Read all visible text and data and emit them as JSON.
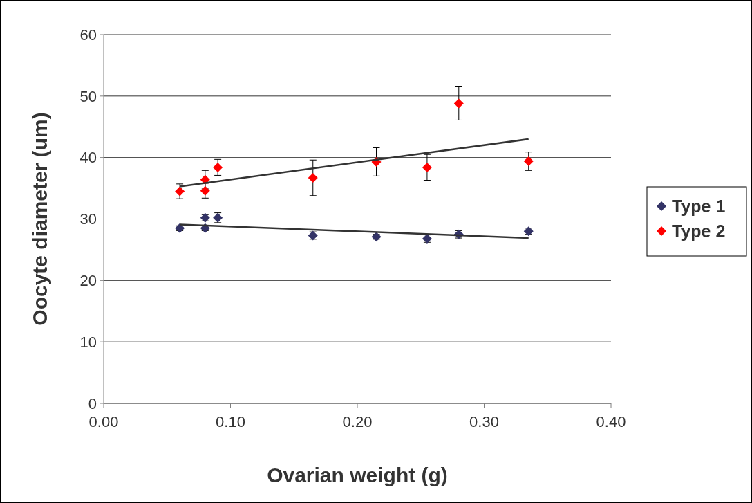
{
  "chart_data": {
    "type": "scatter",
    "xlabel": "Ovarian weight (g)",
    "ylabel": "Oocyte diameter (um)",
    "xlim": [
      0,
      0.4
    ],
    "xticks": [
      {
        "value": 0,
        "label": "0.00"
      },
      {
        "value": 0.1,
        "label": "0.10"
      },
      {
        "value": 0.2,
        "label": "0.20"
      },
      {
        "value": 0.3,
        "label": "0.30"
      },
      {
        "value": 0.4,
        "label": "0.40"
      }
    ],
    "ylim": [
      0,
      60
    ],
    "yticks": [
      0,
      10,
      20,
      30,
      40,
      50,
      60
    ],
    "grid": "y",
    "legend": "right",
    "marker": "diamond",
    "series": [
      {
        "name": "Type 1",
        "color": "#333366",
        "x": [
          0.06,
          0.08,
          0.08,
          0.09,
          0.165,
          0.215,
          0.255,
          0.28,
          0.335
        ],
        "values": [
          28.5,
          30.2,
          28.5,
          30.2,
          27.3,
          27.1,
          26.8,
          27.5,
          28.0
        ],
        "errors": [
          0.4,
          0.5,
          0.4,
          0.8,
          0.6,
          0.4,
          0.6,
          0.6,
          0.5
        ]
      },
      {
        "name": "Type 2",
        "color": "#ff0000",
        "x": [
          0.06,
          0.08,
          0.08,
          0.09,
          0.165,
          0.215,
          0.255,
          0.28,
          0.335
        ],
        "values": [
          34.5,
          36.4,
          34.6,
          38.4,
          36.7,
          39.3,
          38.4,
          48.8,
          39.4
        ],
        "errors": [
          1.2,
          1.5,
          1.2,
          1.3,
          2.9,
          2.3,
          2.1,
          2.7,
          1.5
        ]
      },
      {
        "type": "line",
        "color": "#333333",
        "x": [
          0.06,
          0.335
        ],
        "values": [
          29.1,
          26.9
        ],
        "marker": "none"
      },
      {
        "type": "line",
        "color": "#333333",
        "x": [
          0.06,
          0.335
        ],
        "values": [
          35.3,
          43.0
        ],
        "marker": "none"
      }
    ]
  }
}
